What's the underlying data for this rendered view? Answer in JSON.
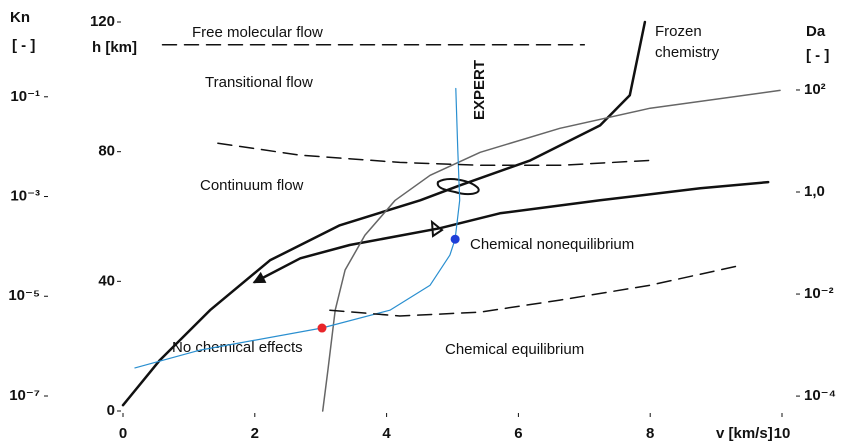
{
  "chart_data": {
    "type": "line",
    "xlabel": "v [km/s]",
    "ylabel": "h [km]",
    "xlim": [
      0,
      10
    ],
    "xticks": [
      0,
      2,
      4,
      6,
      8,
      10
    ],
    "ylim": [
      0,
      120
    ],
    "yticks": [
      0,
      40,
      80,
      120
    ],
    "grid": false,
    "kn_axis": {
      "label": "Kn",
      "unit": "[ - ]",
      "log": true,
      "lim": [
        5e-08,
        3.16
      ],
      "ticks": [
        {
          "value": 0.1,
          "label": "10⁻¹"
        },
        {
          "value": 0.001,
          "label": "10⁻³"
        },
        {
          "value": 1e-05,
          "label": "10⁻⁵"
        },
        {
          "value": 1e-07,
          "label": "10⁻⁷"
        }
      ]
    },
    "da_axis": {
      "label": "Da",
      "unit": "[ - ]",
      "log": true,
      "lim": [
        5.1e-05,
        2150
      ],
      "ticks": [
        {
          "value": 100,
          "label": "10²"
        },
        {
          "value": 1,
          "label": "1,0"
        },
        {
          "value": 0.01,
          "label": "10⁻²"
        },
        {
          "value": 0.0001,
          "label": "10⁻⁴"
        }
      ]
    },
    "series": [
      {
        "color": "#111111",
        "linewidth": 1.5,
        "dashed": true,
        "x": [
          0.6,
          7.0
        ],
        "values": [
          113,
          113
        ]
      },
      {
        "color": "#111111",
        "linewidth": 2.5,
        "dashed": false,
        "x": [
          0,
          0.56,
          1.32,
          2.23,
          3.29,
          4.51,
          5.11,
          6.18,
          7.24,
          7.69,
          7.92
        ],
        "values": [
          1.8,
          15.7,
          31.1,
          46.5,
          57.3,
          65.0,
          69.6,
          77.3,
          88.1,
          97.4,
          120
        ]
      },
      {
        "color": "#111111",
        "linewidth": 2.5,
        "dashed": false,
        "arrow": true,
        "x": [
          9.79,
          8.76,
          7.24,
          5.72,
          4.81,
          3.44,
          2.69,
          2.0
        ],
        "values": [
          70.6,
          68.7,
          65.0,
          61.0,
          56.4,
          51.2,
          47.1,
          39.8
        ]
      },
      {
        "color": "#666666",
        "linewidth": 1.5,
        "dashed": false,
        "x": [
          3.03,
          3.11,
          3.22,
          3.37,
          3.67,
          4.13,
          4.66,
          5.42,
          6.63,
          8.0,
          9.97
        ],
        "values": [
          0,
          12.6,
          31.1,
          43.5,
          54.2,
          65.0,
          72.7,
          79.8,
          87.2,
          93.4,
          98.9
        ]
      },
      {
        "color": "#2a8fd0",
        "linewidth": 1.2,
        "dashed": false,
        "x": [
          0.18,
          1.17,
          3.02,
          4.05,
          4.66,
          4.96,
          5.04,
          5.11,
          5.08,
          5.05
        ],
        "values": [
          13.3,
          18.8,
          25.6,
          31.1,
          38.8,
          48.1,
          53.0,
          65.0,
          80.4,
          99.5
        ]
      },
      {
        "color": "#111111",
        "linewidth": 1.5,
        "dashed": true,
        "x": [
          1.44,
          2.69,
          4.2,
          5.42,
          6.63,
          8.0
        ],
        "values": [
          82.6,
          78.9,
          76.7,
          75.8,
          75.8,
          77.3
        ]
      },
      {
        "color": "#111111",
        "linewidth": 1.5,
        "dashed": true,
        "x": [
          3.14,
          4.2,
          5.42,
          6.63,
          8.0,
          9.39
        ],
        "values": [
          31.1,
          29.3,
          30.5,
          34.2,
          38.8,
          45.0
        ]
      }
    ],
    "points": [
      {
        "color": "#e8252a",
        "x": 3.02,
        "value": 25.6
      },
      {
        "color": "#1f3fd8",
        "x": 5.04,
        "value": 53.0
      }
    ],
    "annotations": [
      "Free molecular flow",
      "Frozen",
      "chemistry",
      "Transitional flow",
      "EXPERT",
      "Continuum flow",
      "Chemical nonequilibrium",
      "No chemical effects",
      "Chemical equilibrium"
    ]
  }
}
